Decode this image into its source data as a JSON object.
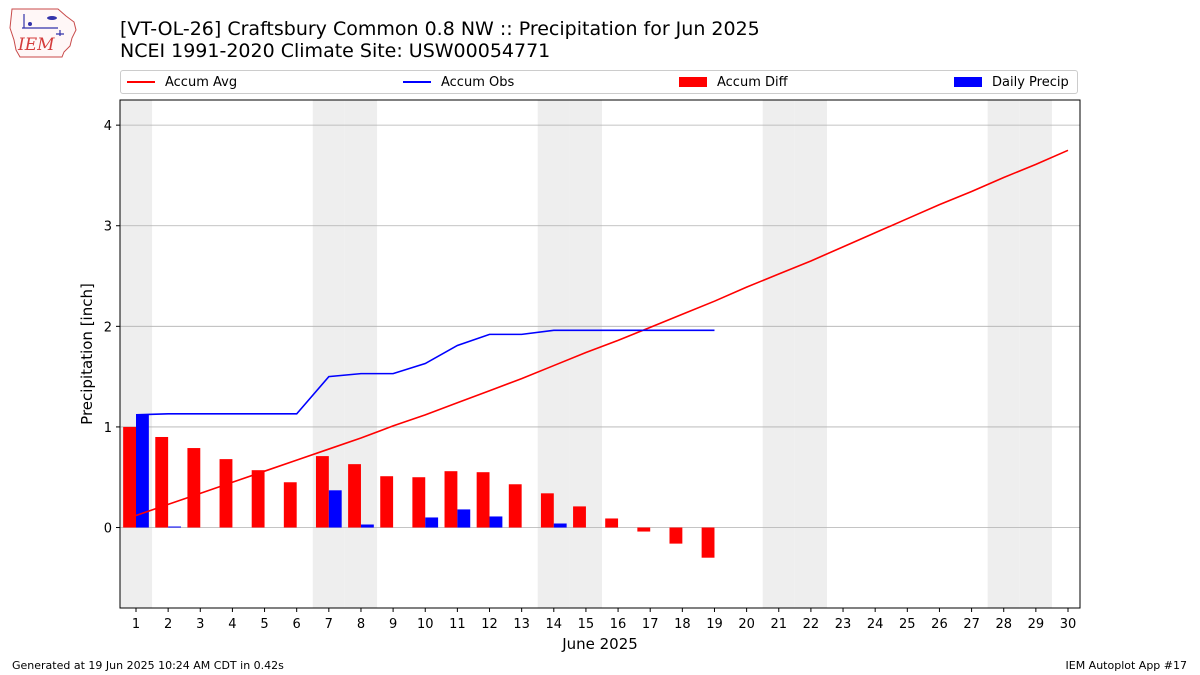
{
  "title_line1": "[VT-OL-26] Craftsbury Common 0.8 NW :: Precipitation for Jun 2025",
  "title_line2": "NCEI 1991-2020 Climate Site: USW00054771",
  "logo_text": "IEM",
  "footer_left": "Generated at 19 Jun 2025 10:24 AM CDT in 0.42s",
  "footer_right": "IEM Autoplot App #17",
  "colors": {
    "avg": "#ff0000",
    "obs": "#0000ff",
    "diff": "#ff0000",
    "daily": "#0000ff",
    "weekend": "#eeeeee",
    "grid": "#b0b0b0"
  },
  "legend": [
    {
      "label": "Accum Avg",
      "kind": "line",
      "color": "#ff0000"
    },
    {
      "label": "Accum Obs",
      "kind": "line",
      "color": "#0000ff"
    },
    {
      "label": "Accum Diff",
      "kind": "bar",
      "color": "#ff0000"
    },
    {
      "label": "Daily Precip",
      "kind": "bar",
      "color": "#0000ff"
    }
  ],
  "chart_data": {
    "type": "bar",
    "xlabel": "June 2025",
    "ylabel": "Precipitation [inch]",
    "ylim": [
      -0.8,
      4.25
    ],
    "yticks": [
      0,
      1,
      2,
      3,
      4
    ],
    "grid": "horizontal",
    "legend_position": "top",
    "days": [
      1,
      2,
      3,
      4,
      5,
      6,
      7,
      8,
      9,
      10,
      11,
      12,
      13,
      14,
      15,
      16,
      17,
      18,
      19,
      20,
      21,
      22,
      23,
      24,
      25,
      26,
      27,
      28,
      29,
      30
    ],
    "weekend_days": [
      1,
      7,
      8,
      14,
      15,
      21,
      22,
      28,
      29
    ],
    "series": [
      {
        "name": "Accum Avg",
        "type": "line",
        "values": [
          0.12,
          0.23,
          0.34,
          0.45,
          0.56,
          0.67,
          0.78,
          0.89,
          1.01,
          1.12,
          1.24,
          1.36,
          1.48,
          1.61,
          1.74,
          1.86,
          1.99,
          2.12,
          2.25,
          2.39,
          2.52,
          2.65,
          2.79,
          2.93,
          3.07,
          3.21,
          3.34,
          3.48,
          3.61,
          3.75
        ]
      },
      {
        "name": "Accum Obs",
        "type": "line",
        "values": [
          1.12,
          1.13,
          1.13,
          1.13,
          1.13,
          1.13,
          1.5,
          1.53,
          1.53,
          1.63,
          1.81,
          1.92,
          1.92,
          1.96,
          1.96,
          1.96,
          1.96,
          1.96,
          1.96
        ]
      },
      {
        "name": "Accum Diff",
        "type": "bar",
        "values": [
          1.0,
          0.9,
          0.79,
          0.68,
          0.57,
          0.45,
          0.71,
          0.63,
          0.51,
          0.5,
          0.56,
          0.55,
          0.43,
          0.34,
          0.21,
          0.09,
          -0.04,
          -0.16,
          -0.3
        ]
      },
      {
        "name": "Daily Precip",
        "type": "bar",
        "values": [
          1.12,
          0.01,
          0,
          0,
          0,
          0,
          0.37,
          0.03,
          0,
          0.1,
          0.18,
          0.11,
          0,
          0.04,
          0,
          0,
          0,
          0,
          0
        ]
      }
    ]
  }
}
